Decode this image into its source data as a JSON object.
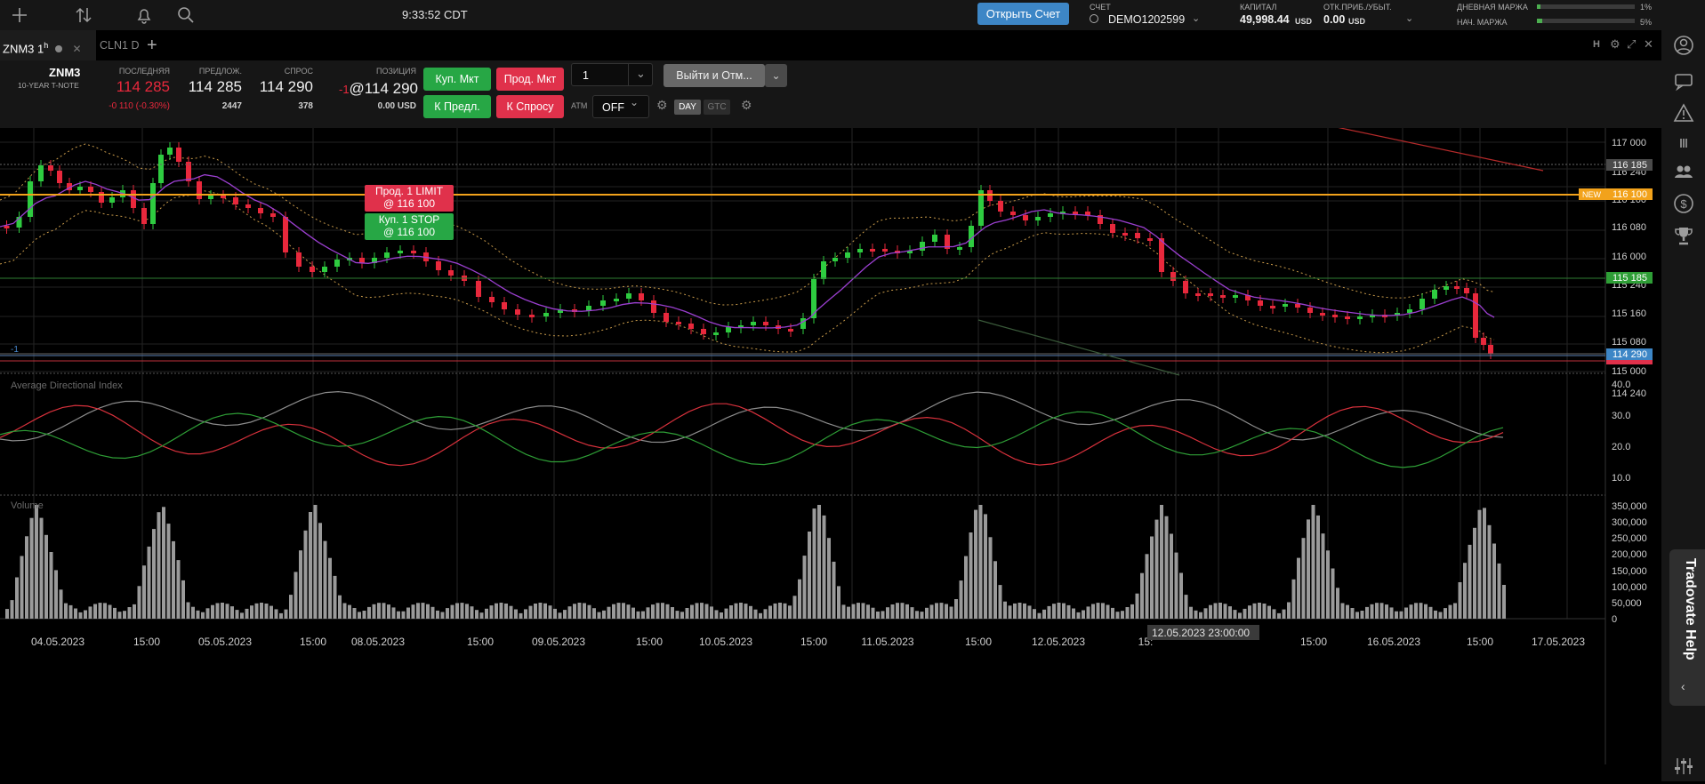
{
  "topbar": {
    "clock": "9:33:52 CDT",
    "open_account_label": "Открыть Счет",
    "account_label": "СЧЕТ",
    "account_id": "DEMO1202599",
    "capital_label": "КАПИТАЛ",
    "capital_value": "49,998.44",
    "capital_unit": "USD",
    "pnl_label": "ОТК.ПРИБ./УБЫТ.",
    "pnl_value": "0.00",
    "pnl_unit": "USD",
    "day_margin_label": "ДНЕВНАЯ МАРЖА",
    "day_margin_pct": "1%",
    "init_margin_label": "НАЧ. МАРЖА",
    "init_margin_pct": "5%",
    "icons": [
      "plus-icon",
      "sort-arrows-icon",
      "bell-icon",
      "search-icon"
    ]
  },
  "tabs": [
    {
      "label": "ZNM3",
      "interval": "1",
      "sup": "h"
    },
    {
      "label": "CLN1",
      "interval": "D"
    }
  ],
  "quote": {
    "symbol": "ZNM3",
    "description": "10-YEAR T-NOTE",
    "last_label": "ПОСЛЕДНЯЯ",
    "last_value": "114 285",
    "last_change": "-0 110 (-0.30%)",
    "ask_label": "ПРЕДЛОЖ.",
    "ask_value": "114 285",
    "ask_size": "2447",
    "bid_label": "СПРОС",
    "bid_value": "114 290",
    "bid_size": "378",
    "position_label": "ПОЗИЦИЯ",
    "position_qty": "-1",
    "position_price": "@114 290",
    "position_pnl": "0.00 USD",
    "buy_mkt": "Куп. Мкт",
    "sell_mkt": "Прод. Мкт",
    "buy_bid": "К Предл.",
    "sell_ask": "К Спросу",
    "qty_value": "1",
    "exit_label": "Выйти и Отм...",
    "atm_label": "ATM",
    "atm_value": "OFF",
    "day_label": "DAY",
    "gtc_label": "GTC"
  },
  "orders": {
    "sell_limit_line1": "Прод. 1 LIMIT",
    "sell_limit_line2": "@ 116 100",
    "buy_stop_line1": "Куп. 1 STOP",
    "buy_stop_line2": "@ 116 100"
  },
  "price_axis": {
    "ticks": [
      "117 000",
      "116 240",
      "116 160",
      "116 080",
      "116 000",
      "115 240",
      "115 160",
      "115 080",
      "115 000",
      "114 240"
    ],
    "tags": {
      "dotted": "116 185",
      "new_label": "NEW",
      "new_price": "116 100",
      "green": "115 185",
      "current": "114 290",
      "position_marker": "-1"
    }
  },
  "adx": {
    "title": "Average Directional Index",
    "ticks": [
      "40.0",
      "30.0",
      "20.0",
      "10.0"
    ]
  },
  "volume": {
    "title": "Volume",
    "ticks": [
      "350,000",
      "300,000",
      "250,000",
      "200,000",
      "150,000",
      "100,000",
      "50,000",
      "0"
    ]
  },
  "time_axis": {
    "labels": [
      "04.05.2023",
      "15:00",
      "05.05.2023",
      "15:00",
      "08.05.2023",
      "15:00",
      "09.05.2023",
      "15:00",
      "10.05.2023",
      "15:00",
      "11.05.2023",
      "15:00",
      "12.05.2023",
      "15:",
      "12.05.2023 23:00:00",
      "15:00",
      "16.05.2023",
      "15:00",
      "17.05.2023"
    ]
  },
  "help_label": "Tradovate Help",
  "colors": {
    "up": "#2ecc40",
    "down": "#e8283c",
    "ma": "#9b3fd0",
    "bands": "#c89a4a",
    "adx_gray": "#8c8c8c",
    "adx_red": "#d8313c",
    "adx_green": "#2e9e36",
    "order_line": "#f2a21b"
  }
}
